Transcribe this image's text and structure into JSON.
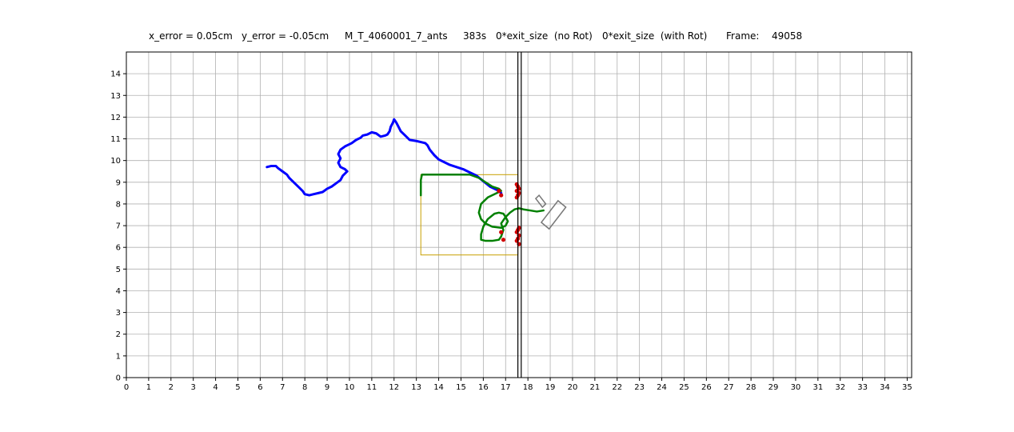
{
  "title": {
    "x_error": "x_error = 0.05cm",
    "y_error": "y_error = -0.05cm",
    "experiment": "M_T_4060001_7_ants",
    "time": "383s",
    "exit_no_rot": "0*exit_size  (no Rot)",
    "exit_with_rot": "0*exit_size  (with Rot)",
    "frame_label": "Frame:",
    "frame_value": "49058"
  },
  "colors": {
    "trajectory": "#0000ff",
    "attached": "#008000",
    "contact": "#d00000",
    "box": "#c8a000",
    "shape": "#777777",
    "grid": "#b0b0b0",
    "wall": "#000000"
  },
  "chart_data": {
    "type": "line",
    "xlim": [
      0,
      35.2
    ],
    "ylim": [
      0,
      15
    ],
    "xticks": [
      0,
      1,
      2,
      3,
      4,
      5,
      6,
      7,
      8,
      9,
      10,
      11,
      12,
      13,
      14,
      15,
      16,
      17,
      18,
      19,
      20,
      21,
      22,
      23,
      24,
      25,
      26,
      27,
      28,
      29,
      30,
      31,
      32,
      33,
      34,
      35
    ],
    "yticks": [
      0,
      1,
      2,
      3,
      4,
      5,
      6,
      7,
      8,
      9,
      10,
      11,
      12,
      13,
      14
    ],
    "grid": true,
    "walls_x": [
      17.55,
      17.7
    ],
    "trajectory": {
      "x": [
        6.3,
        6.5,
        6.7,
        6.8,
        7.0,
        7.2,
        7.3,
        7.5,
        7.7,
        7.9,
        8.0,
        8.2,
        8.4,
        8.6,
        8.8,
        9.0,
        9.2,
        9.4,
        9.6,
        9.7,
        9.9,
        9.8,
        9.6,
        9.5,
        9.6,
        9.5,
        9.6,
        9.8,
        10.0,
        10.1,
        10.3,
        10.5,
        10.6,
        10.8,
        11.0,
        11.2,
        11.4,
        11.6,
        11.7,
        11.8,
        11.85,
        11.95,
        12.0,
        12.1,
        12.2,
        12.3,
        12.5,
        12.7,
        13.0,
        13.2,
        13.4,
        13.5,
        13.6,
        13.8,
        14.0,
        14.2,
        14.5,
        14.8,
        15.1,
        15.4,
        15.7,
        16.0,
        16.3,
        16.5,
        16.7,
        16.8
      ],
      "y": [
        9.7,
        9.75,
        9.75,
        9.65,
        9.5,
        9.35,
        9.2,
        9.0,
        8.8,
        8.6,
        8.45,
        8.4,
        8.45,
        8.5,
        8.55,
        8.7,
        8.8,
        8.95,
        9.1,
        9.3,
        9.5,
        9.6,
        9.7,
        9.9,
        10.1,
        10.3,
        10.5,
        10.65,
        10.75,
        10.8,
        10.95,
        11.05,
        11.15,
        11.2,
        11.3,
        11.25,
        11.1,
        11.15,
        11.2,
        11.35,
        11.55,
        11.75,
        11.9,
        11.75,
        11.55,
        11.35,
        11.15,
        10.95,
        10.9,
        10.85,
        10.8,
        10.7,
        10.5,
        10.25,
        10.05,
        9.95,
        9.8,
        9.7,
        9.6,
        9.45,
        9.3,
        9.05,
        8.8,
        8.7,
        8.6,
        8.5
      ]
    },
    "attached_path": {
      "x": [
        13.2,
        13.2,
        13.25,
        15.4,
        15.8,
        16.1,
        16.4,
        16.7,
        16.8,
        16.6,
        16.2,
        15.9,
        15.8,
        15.9,
        16.1,
        16.4,
        16.8,
        17.0,
        17.1,
        17.0,
        16.9,
        16.7,
        16.5,
        16.2,
        16.0,
        15.9,
        15.9,
        16.1,
        16.4,
        16.7,
        16.8,
        16.9,
        16.8,
        17.0,
        17.2,
        17.4,
        17.6,
        17.8,
        18.1,
        18.4,
        18.7
      ],
      "y": [
        8.4,
        9.1,
        9.35,
        9.35,
        9.2,
        9.0,
        8.8,
        8.7,
        8.6,
        8.5,
        8.3,
        8.0,
        7.6,
        7.3,
        7.1,
        6.95,
        6.9,
        7.0,
        7.2,
        7.4,
        7.55,
        7.6,
        7.55,
        7.3,
        6.95,
        6.6,
        6.35,
        6.3,
        6.3,
        6.35,
        6.5,
        6.8,
        7.1,
        7.4,
        7.6,
        7.75,
        7.8,
        7.75,
        7.7,
        7.65,
        7.7
      ]
    },
    "contact_points": {
      "x": [
        17.5,
        17.55,
        17.6,
        17.5,
        17.6,
        17.55,
        17.5,
        17.6,
        17.55,
        17.5,
        17.6,
        17.55,
        17.5,
        17.6,
        16.7,
        16.8,
        16.8,
        16.9
      ],
      "y": [
        8.9,
        8.8,
        8.7,
        8.6,
        8.5,
        8.4,
        8.3,
        6.9,
        6.8,
        6.7,
        6.55,
        6.4,
        6.3,
        6.15,
        8.6,
        8.4,
        6.7,
        6.35
      ]
    },
    "bounding_box": {
      "x": [
        13.2,
        17.55
      ],
      "y": [
        5.65,
        9.35
      ]
    },
    "load_shape": [
      {
        "x": [
          18.5,
          18.8,
          18.65,
          18.35
        ],
        "y": [
          8.4,
          8.0,
          7.85,
          8.25
        ]
      },
      {
        "x": [
          19.35,
          19.7,
          18.95,
          18.6
        ],
        "y": [
          8.15,
          7.85,
          6.85,
          7.15
        ]
      }
    ]
  }
}
